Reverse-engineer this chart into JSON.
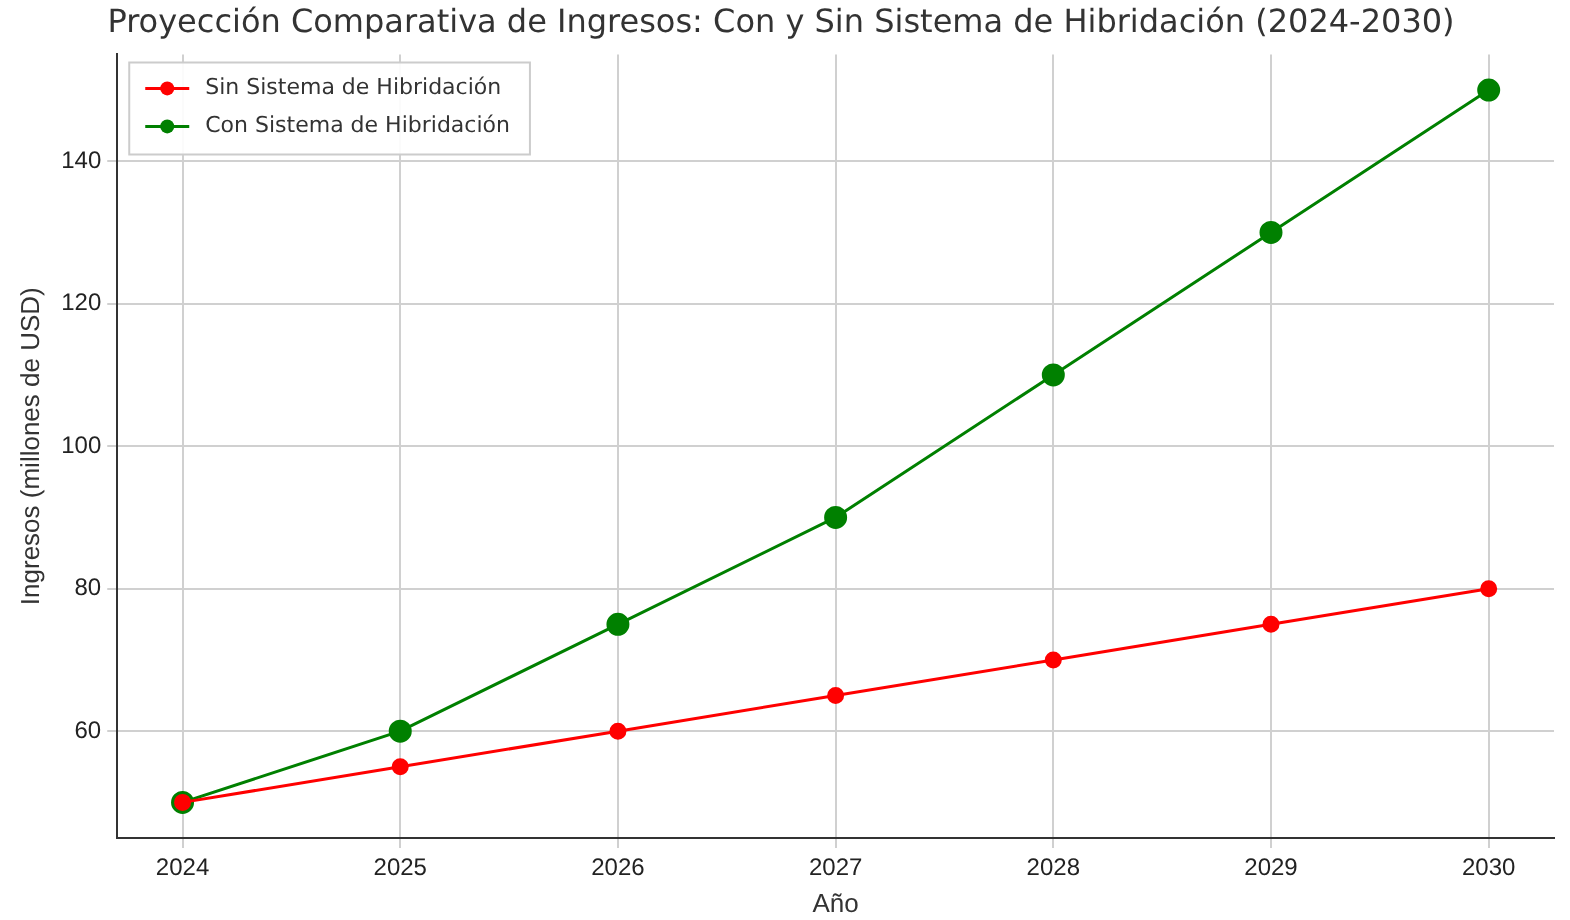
{
  "chart_data": {
    "type": "line",
    "title": "Proyección Comparativa de Ingresos: Con y Sin Sistema de Hibridación (2024-2030)",
    "xlabel": "Año",
    "ylabel": "Ingresos (millones de USD)",
    "x": [
      2024,
      2025,
      2026,
      2027,
      2028,
      2029,
      2030
    ],
    "series": [
      {
        "name": "Sin Sistema de Hibridación",
        "color": "#ff0000",
        "values": [
          50,
          55,
          60,
          65,
          70,
          75,
          80
        ]
      },
      {
        "name": "Con Sistema de Hibridación",
        "color": "#008000",
        "values": [
          50,
          60,
          75,
          90,
          110,
          130,
          150
        ]
      }
    ],
    "xlim": [
      2023.7,
      2030.3
    ],
    "xticks": [
      2024,
      2025,
      2026,
      2027,
      2028,
      2029,
      2030
    ],
    "ylim": [
      45,
      155
    ],
    "yticks": [
      60,
      80,
      100,
      120,
      140
    ],
    "grid": true,
    "legend": "top left",
    "marker": "circle",
    "line_style": "solid"
  }
}
